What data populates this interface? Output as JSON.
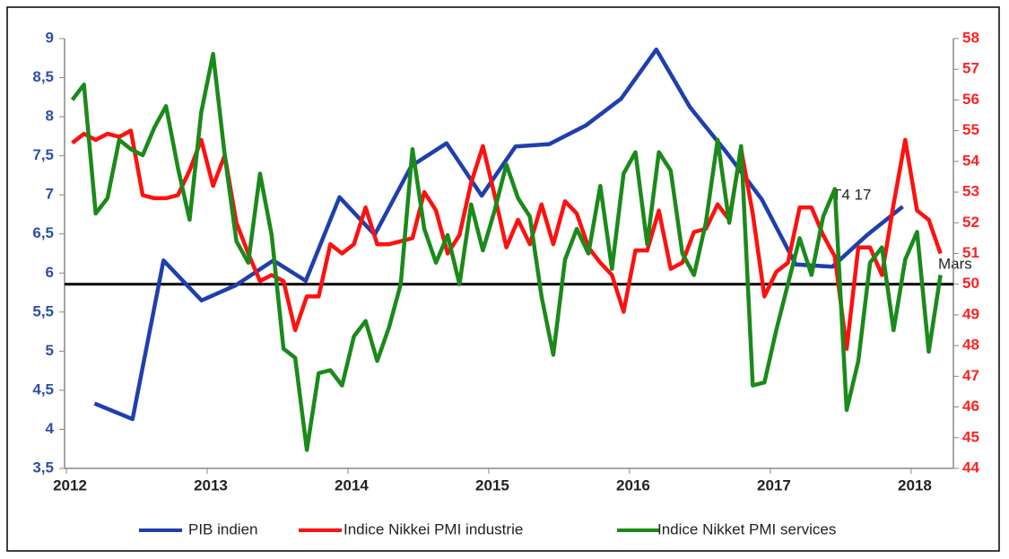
{
  "chart_data": {
    "type": "line",
    "annotations": [
      "T4 17",
      "Mars"
    ],
    "xlim": [
      2012,
      2018.3
    ],
    "xticks": [
      2012,
      2013,
      2014,
      2015,
      2016,
      2017,
      2018
    ],
    "ylim": [
      3.5,
      9
    ],
    "yticks": [
      {
        "value": 3.5,
        "label": "3,5"
      },
      4,
      {
        "value": 4.5,
        "label": "4,5"
      },
      5,
      {
        "value": 5.5,
        "label": "5,5"
      },
      6,
      {
        "value": 6.5,
        "label": "6,5"
      },
      7,
      {
        "value": 7.5,
        "label": "7,5"
      },
      8,
      {
        "value": 8.5,
        "label": "8,5"
      },
      9
    ],
    "y2lim": [
      44,
      58
    ],
    "y2ticks": [
      44,
      45,
      46,
      47,
      48,
      49,
      50,
      51,
      52,
      53,
      54,
      55,
      56,
      57,
      58
    ],
    "reference_line": {
      "value": 50,
      "axis": "y2",
      "color": "#000000"
    },
    "x": [
      2012.042,
      2012.125,
      2012.208,
      2012.292,
      2012.375,
      2012.458,
      2012.542,
      2012.625,
      2012.708,
      2012.792,
      2012.875,
      2012.958,
      2013.042,
      2013.125,
      2013.208,
      2013.292,
      2013.375,
      2013.458,
      2013.542,
      2013.625,
      2013.708,
      2013.792,
      2013.875,
      2013.958,
      2014.042,
      2014.125,
      2014.208,
      2014.292,
      2014.375,
      2014.458,
      2014.542,
      2014.625,
      2014.708,
      2014.792,
      2014.875,
      2014.958,
      2015.042,
      2015.125,
      2015.208,
      2015.292,
      2015.375,
      2015.458,
      2015.542,
      2015.625,
      2015.708,
      2015.792,
      2015.875,
      2015.958,
      2016.042,
      2016.125,
      2016.208,
      2016.292,
      2016.375,
      2016.458,
      2016.542,
      2016.625,
      2016.708,
      2016.792,
      2016.875,
      2016.958,
      2017.042,
      2017.125,
      2017.208,
      2017.292,
      2017.375,
      2017.458,
      2017.542,
      2017.625,
      2017.708,
      2017.792,
      2017.875,
      2017.958,
      2018.042,
      2018.125,
      2018.208
    ],
    "series": [
      {
        "name": "PIB indien",
        "color": "#1f3fae",
        "x": [
          2012.2,
          2012.47,
          2012.69,
          2012.96,
          2013.2,
          2013.47,
          2013.7,
          2013.94,
          2014.19,
          2014.45,
          2014.7,
          2014.95,
          2015.19,
          2015.43,
          2015.69,
          2015.94,
          2016.19,
          2016.43,
          2016.69,
          2016.94,
          2017.18,
          2017.44,
          2017.69,
          2017.94
        ],
        "values": [
          4.33,
          4.13,
          6.16,
          5.65,
          5.84,
          6.16,
          5.9,
          6.97,
          6.49,
          7.37,
          7.66,
          6.99,
          7.62,
          7.65,
          7.89,
          8.23,
          8.86,
          8.12,
          7.54,
          6.94,
          6.11,
          6.08,
          6.49,
          6.85
        ]
      },
      {
        "name": "Indice Nikkei PMI industrie",
        "color": "#ff1010",
        "axis": "y2",
        "values": [
          54.6,
          54.9,
          54.7,
          54.9,
          54.8,
          55.0,
          52.9,
          52.8,
          52.8,
          52.9,
          53.7,
          54.7,
          53.2,
          54.2,
          52.0,
          51.0,
          50.1,
          50.3,
          50.1,
          48.5,
          49.6,
          49.6,
          51.3,
          51.0,
          51.3,
          52.5,
          51.3,
          51.3,
          51.4,
          51.5,
          53.0,
          52.4,
          51.0,
          51.6,
          53.3,
          54.5,
          52.9,
          51.2,
          52.1,
          51.3,
          52.6,
          51.3,
          52.7,
          52.3,
          51.2,
          50.7,
          50.3,
          49.1,
          51.1,
          51.1,
          52.4,
          50.5,
          50.7,
          51.7,
          51.8,
          52.6,
          52.1,
          54.4,
          52.3,
          49.6,
          50.4,
          50.7,
          52.5,
          52.5,
          51.6,
          50.9,
          47.9,
          51.2,
          51.2,
          50.3,
          52.6,
          54.7,
          52.4,
          52.1,
          51.0
        ]
      },
      {
        "name": "Indice Nikket PMI services",
        "color": "#1a8a1a",
        "axis": "y2",
        "values": [
          56.0,
          56.5,
          52.3,
          52.8,
          54.7,
          54.4,
          54.2,
          55.1,
          55.8,
          53.8,
          52.1,
          55.6,
          57.5,
          54.2,
          51.4,
          50.7,
          53.6,
          51.6,
          47.9,
          47.6,
          44.6,
          47.1,
          47.2,
          46.7,
          48.3,
          48.8,
          47.5,
          48.6,
          50.0,
          54.4,
          51.8,
          50.7,
          51.6,
          50.0,
          52.6,
          51.1,
          52.4,
          53.9,
          52.8,
          52.2,
          49.6,
          47.7,
          50.8,
          51.8,
          51.0,
          53.2,
          50.5,
          53.6,
          54.3,
          51.3,
          54.3,
          53.7,
          51.0,
          50.3,
          52.0,
          54.7,
          52.0,
          54.5,
          46.7,
          46.8,
          48.5,
          50.0,
          51.5,
          50.3,
          52.2,
          53.1,
          45.9,
          47.5,
          50.7,
          51.2,
          48.5,
          50.8,
          51.7,
          47.8,
          50.3
        ]
      }
    ]
  }
}
